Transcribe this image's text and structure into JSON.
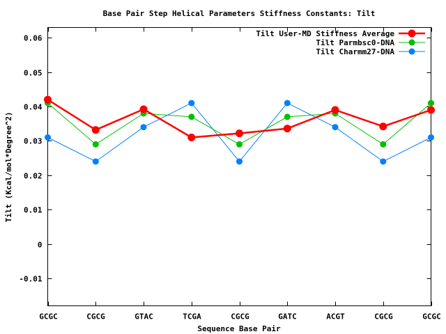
{
  "chart_data": {
    "type": "line",
    "title": "Base Pair Step Helical Parameters Stiffness Constants: Tilt",
    "xlabel": "Sequence Base Pair",
    "ylabel": "Tilt (Kcal/mol*Degree^2)",
    "categories": [
      "GCGC",
      "CGCG",
      "GTAC",
      "TCGA",
      "CGCG",
      "GATC",
      "ACGT",
      "CGCG",
      "GCGC"
    ],
    "ylim": [
      -0.018,
      0.063
    ],
    "yticks": [
      {
        "value": 0.06,
        "label": "0.06"
      },
      {
        "value": 0.05,
        "label": "0.05"
      },
      {
        "value": 0.04,
        "label": "0.04"
      },
      {
        "value": 0.03,
        "label": "0.03"
      },
      {
        "value": 0.02,
        "label": "0.02"
      },
      {
        "value": 0.01,
        "label": "0.01"
      },
      {
        "value": 0,
        "label": "0"
      },
      {
        "value": -0.01,
        "label": "-0.01"
      }
    ],
    "grid": false,
    "legend": "top-right",
    "series": [
      {
        "name": "Tilt User-MD Stiffness Average",
        "color": "#ff0000",
        "values": [
          0.042,
          0.0332,
          0.0392,
          0.031,
          0.0322,
          0.0336,
          0.039,
          0.0342,
          0.039
        ]
      },
      {
        "name": "Tilt Parmbsc0-DNA",
        "color": "#00c000",
        "values": [
          0.041,
          0.029,
          0.038,
          0.037,
          0.029,
          0.037,
          0.038,
          0.029,
          0.041
        ]
      },
      {
        "name": "Tilt Charmm27-DNA",
        "color": "#0080ff",
        "values": [
          0.031,
          0.024,
          0.034,
          0.041,
          0.024,
          0.041,
          0.034,
          0.024,
          0.031
        ]
      }
    ]
  }
}
